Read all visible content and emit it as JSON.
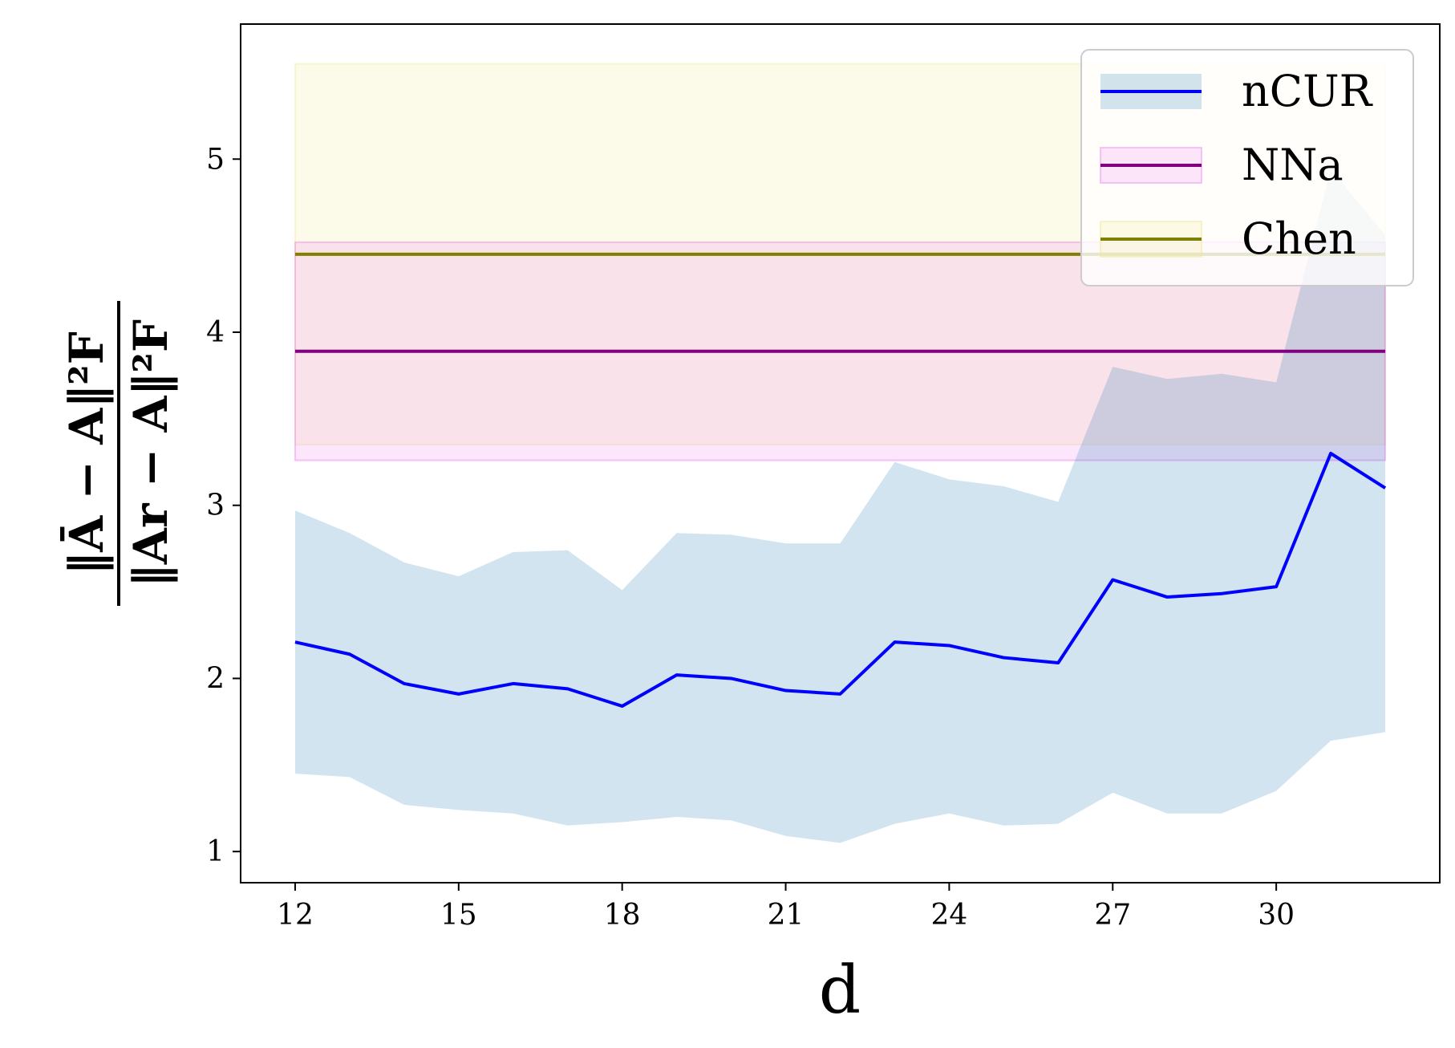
{
  "chart_data": {
    "type": "line",
    "xlabel": "d",
    "ylabel": {
      "numerator": "‖Ā − A‖²F",
      "denominator": "‖Ar − A‖²F"
    },
    "xlim": [
      11,
      33
    ],
    "ylim": [
      0.82,
      5.78
    ],
    "xticks": [
      12,
      15,
      18,
      21,
      24,
      27,
      30
    ],
    "yticks": [
      1,
      2,
      3,
      4,
      5
    ],
    "grid": false,
    "legend_position": "upper right",
    "x": [
      12,
      13,
      14,
      15,
      16,
      17,
      18,
      19,
      20,
      21,
      22,
      23,
      24,
      25,
      26,
      27,
      28,
      29,
      30,
      31,
      32
    ],
    "series": [
      {
        "name": "nCUR",
        "color": "#0000ff",
        "band_color": "#1f77b4",
        "values": [
          2.21,
          2.14,
          1.97,
          1.91,
          1.97,
          1.94,
          1.84,
          2.02,
          2.0,
          1.93,
          1.91,
          2.21,
          2.19,
          2.12,
          2.09,
          2.57,
          2.47,
          2.49,
          2.53,
          3.3,
          3.1
        ],
        "lower": [
          1.45,
          1.43,
          1.27,
          1.24,
          1.22,
          1.15,
          1.17,
          1.2,
          1.18,
          1.09,
          1.05,
          1.16,
          1.22,
          1.15,
          1.16,
          1.34,
          1.22,
          1.22,
          1.35,
          1.64,
          1.69
        ],
        "upper": [
          2.97,
          2.84,
          2.67,
          2.59,
          2.73,
          2.74,
          2.51,
          2.84,
          2.83,
          2.78,
          2.78,
          3.25,
          3.15,
          3.11,
          3.02,
          3.8,
          3.73,
          3.76,
          3.71,
          4.94,
          4.56
        ]
      },
      {
        "name": "NNa",
        "color": "#800080",
        "band_color": "#ee82ee",
        "value": 3.89,
        "lower": 3.26,
        "upper": 4.52,
        "x_range": [
          12,
          32
        ]
      },
      {
        "name": "Chen",
        "color": "#808000",
        "band_color": "#f0e68c",
        "value": 4.45,
        "lower": 3.35,
        "upper": 5.55,
        "x_range": [
          12,
          32
        ]
      }
    ]
  }
}
